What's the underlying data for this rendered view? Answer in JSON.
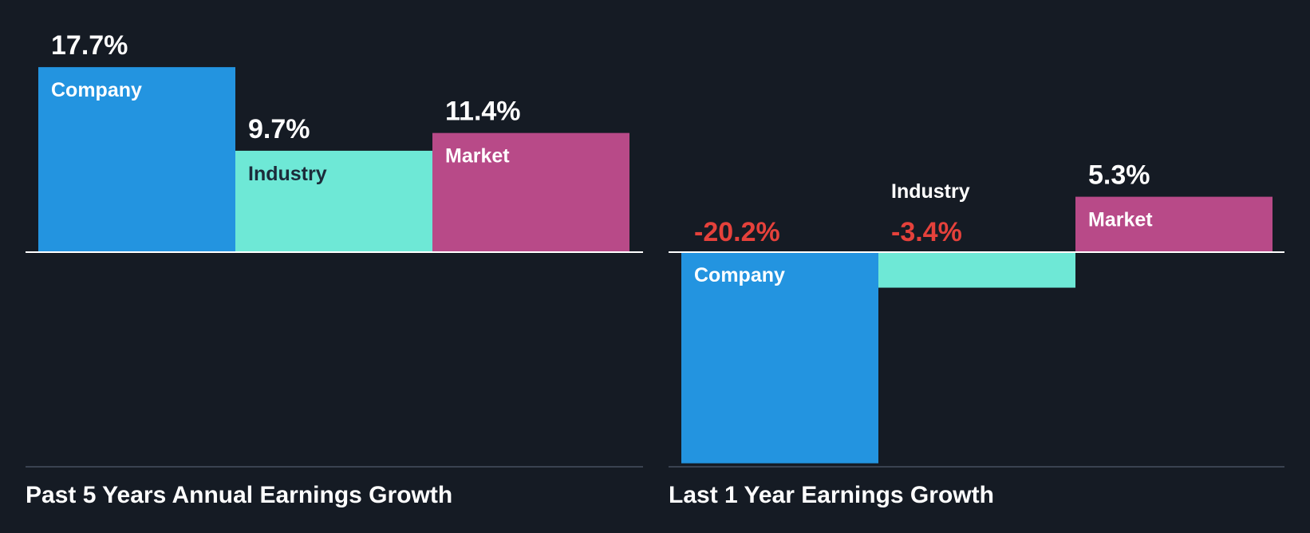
{
  "colors": {
    "background": "#151b24",
    "company": "#2394e0",
    "industry": "#6ee8d6",
    "market": "#b84a88",
    "positive_value_text": "#ffffff",
    "negative_value_text": "#e5413b",
    "label_on_dark_bar": "#ffffff",
    "label_on_light_bar": "#1c2b3a",
    "zero_line": "#ffffff",
    "baseline": "#3a4350"
  },
  "chart_data": [
    {
      "type": "bar",
      "title": "Past 5 Years Annual Earnings Growth",
      "categories": [
        "Company",
        "Industry",
        "Market"
      ],
      "values": [
        17.7,
        9.7,
        11.4
      ],
      "value_labels": [
        "17.7%",
        "9.7%",
        "11.4%"
      ],
      "unit": "%",
      "ylim": [
        -22.8,
        17.7
      ],
      "grid": false,
      "legend": "none"
    },
    {
      "type": "bar",
      "title": "Last 1 Year Earnings Growth",
      "categories": [
        "Company",
        "Industry",
        "Market"
      ],
      "values": [
        -20.2,
        -3.4,
        5.3
      ],
      "value_labels": [
        "-20.2%",
        "-3.4%",
        "5.3%"
      ],
      "unit": "%",
      "ylim": [
        -20.2,
        7.9
      ],
      "grid": false,
      "legend": "none"
    }
  ]
}
